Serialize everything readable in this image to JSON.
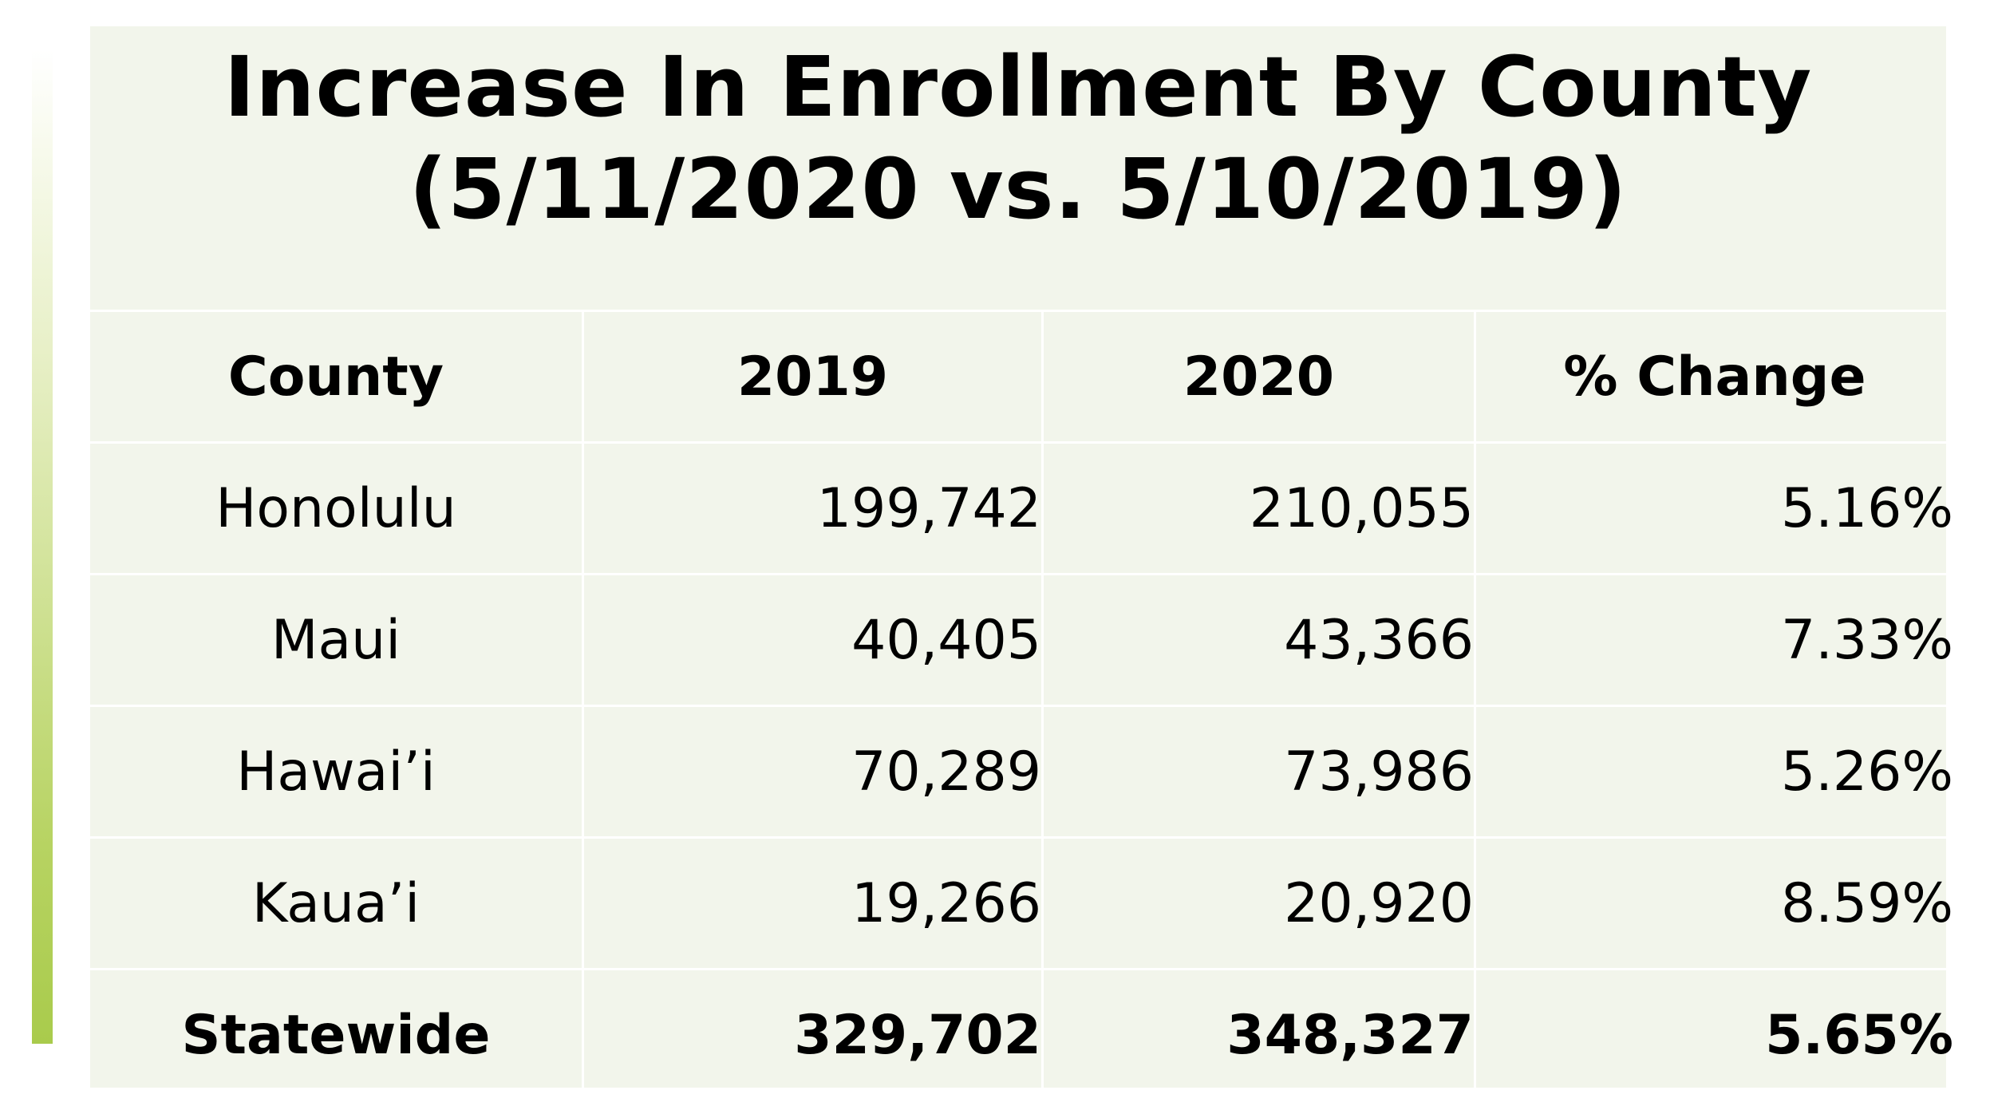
{
  "title": {
    "line1": "Increase In Enrollment By County",
    "line2": "(5/11/2020 vs. 5/10/2019)"
  },
  "table": {
    "headers": [
      "County",
      "2019",
      "2020",
      "% Change"
    ],
    "rows": [
      [
        "Honolulu",
        "199,742",
        "210,055",
        "5.16%"
      ],
      [
        "Maui",
        "40,405",
        "43,366",
        "7.33%"
      ],
      [
        "Hawai’i",
        "70,289",
        "73,986",
        "5.26%"
      ],
      [
        "Kaua’i",
        "19,266",
        "20,920",
        "8.59%"
      ]
    ],
    "total": [
      "Statewide",
      "329,702",
      "348,327",
      "5.65%"
    ]
  },
  "colors": {
    "panel_background": "#f2f5eb",
    "accent": "#a9cb4c",
    "cell_border": "#ffffff"
  }
}
